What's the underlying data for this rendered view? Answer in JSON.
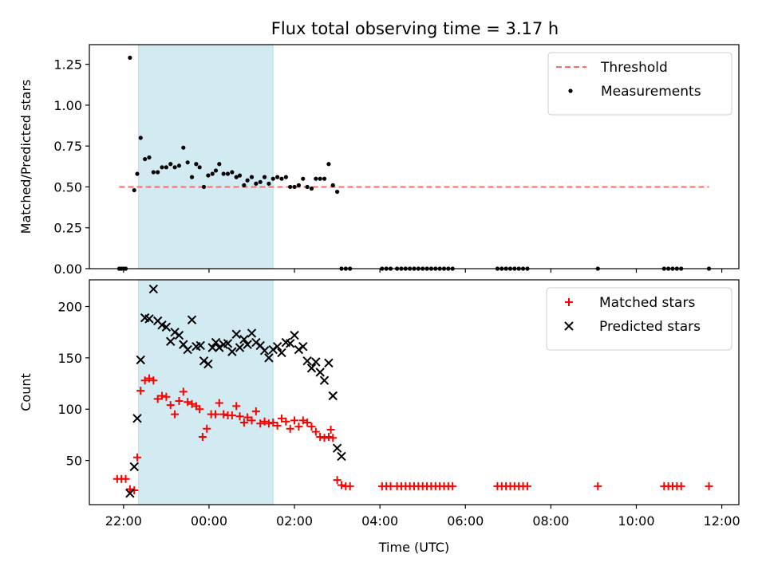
{
  "title": "Flux total observing time = 3.17 h",
  "colors": {
    "threshold": "#ff6b6b",
    "measurement": "#000000",
    "matched": "#ff0000",
    "predicted": "#000000",
    "highlight": "#add8e6"
  },
  "chart_data": [
    {
      "type": "scatter",
      "ylabel": "Matched/Predicted stars",
      "ylim": [
        0,
        1.37
      ],
      "yticks": [
        0,
        0.25,
        0.5,
        0.75,
        1.0,
        1.25
      ],
      "ytick_labels": [
        "0.00",
        "0.25",
        "0.50",
        "0.75",
        "1.00",
        "1.25"
      ],
      "xlim_hours": [
        -2.8,
        12.4
      ],
      "highlight_span_hours": [
        -1.65,
        1.5
      ],
      "legend": {
        "placement": "top-right",
        "entries": [
          {
            "label": "Threshold",
            "kind": "dashed-line",
            "color": "#ff6b6b"
          },
          {
            "label": "Measurements",
            "kind": "dot",
            "color": "#000000"
          }
        ]
      },
      "threshold": {
        "name": "Threshold",
        "value": 0.5,
        "x_range_hours": [
          -2.1,
          11.7
        ]
      },
      "series": [
        {
          "name": "Measurements",
          "points": [
            [
              -2.1,
              0
            ],
            [
              -2.05,
              0
            ],
            [
              -2.0,
              0
            ],
            [
              -1.95,
              0
            ],
            [
              -1.85,
              1.29
            ],
            [
              -1.75,
              0.48
            ],
            [
              -1.68,
              0.58
            ],
            [
              -1.6,
              0.8
            ],
            [
              -1.5,
              0.67
            ],
            [
              -1.4,
              0.68
            ],
            [
              -1.3,
              0.59
            ],
            [
              -1.2,
              0.59
            ],
            [
              -1.1,
              0.62
            ],
            [
              -1.0,
              0.62
            ],
            [
              -0.9,
              0.64
            ],
            [
              -0.8,
              0.62
            ],
            [
              -0.7,
              0.63
            ],
            [
              -0.6,
              0.74
            ],
            [
              -0.5,
              0.65
            ],
            [
              -0.4,
              0.56
            ],
            [
              -0.3,
              0.64
            ],
            [
              -0.22,
              0.62
            ],
            [
              -0.12,
              0.5
            ],
            [
              -0.02,
              0.57
            ],
            [
              0.08,
              0.58
            ],
            [
              0.16,
              0.6
            ],
            [
              0.24,
              0.64
            ],
            [
              0.34,
              0.58
            ],
            [
              0.44,
              0.58
            ],
            [
              0.54,
              0.59
            ],
            [
              0.64,
              0.56
            ],
            [
              0.72,
              0.57
            ],
            [
              0.82,
              0.51
            ],
            [
              0.9,
              0.54
            ],
            [
              1.0,
              0.56
            ],
            [
              1.1,
              0.52
            ],
            [
              1.2,
              0.53
            ],
            [
              1.3,
              0.56
            ],
            [
              1.4,
              0.52
            ],
            [
              1.5,
              0.55
            ],
            [
              1.6,
              0.56
            ],
            [
              1.7,
              0.55
            ],
            [
              1.8,
              0.56
            ],
            [
              1.9,
              0.5
            ],
            [
              2.0,
              0.5
            ],
            [
              2.1,
              0.51
            ],
            [
              2.2,
              0.55
            ],
            [
              2.3,
              0.5
            ],
            [
              2.4,
              0.49
            ],
            [
              2.5,
              0.55
            ],
            [
              2.6,
              0.55
            ],
            [
              2.7,
              0.55
            ],
            [
              2.8,
              0.64
            ],
            [
              2.9,
              0.51
            ],
            [
              3.0,
              0.47
            ],
            [
              3.1,
              0
            ],
            [
              3.2,
              0
            ],
            [
              3.3,
              0
            ],
            [
              4.05,
              0
            ],
            [
              4.15,
              0
            ],
            [
              4.25,
              0
            ],
            [
              4.4,
              0
            ],
            [
              4.5,
              0
            ],
            [
              4.6,
              0
            ],
            [
              4.7,
              0
            ],
            [
              4.8,
              0
            ],
            [
              4.9,
              0
            ],
            [
              5.0,
              0
            ],
            [
              5.1,
              0
            ],
            [
              5.2,
              0
            ],
            [
              5.3,
              0
            ],
            [
              5.4,
              0
            ],
            [
              5.5,
              0
            ],
            [
              5.6,
              0
            ],
            [
              5.7,
              0
            ],
            [
              6.75,
              0
            ],
            [
              6.85,
              0
            ],
            [
              6.95,
              0
            ],
            [
              7.05,
              0
            ],
            [
              7.15,
              0
            ],
            [
              7.25,
              0
            ],
            [
              7.35,
              0
            ],
            [
              7.45,
              0
            ],
            [
              9.1,
              0
            ],
            [
              10.65,
              0
            ],
            [
              10.75,
              0
            ],
            [
              10.85,
              0
            ],
            [
              10.95,
              0
            ],
            [
              11.05,
              0
            ],
            [
              11.7,
              0
            ]
          ]
        }
      ]
    },
    {
      "type": "scatter",
      "ylabel": "Count",
      "xlabel": "Time (UTC)",
      "ylim": [
        7,
        226
      ],
      "yticks": [
        50,
        100,
        150,
        200
      ],
      "ytick_labels": [
        "50",
        "100",
        "150",
        "200"
      ],
      "xlim_hours": [
        -2.8,
        12.4
      ],
      "xticks_hours": [
        -2,
        0,
        2,
        4,
        6,
        8,
        10,
        12
      ],
      "xtick_labels": [
        "22:00",
        "00:00",
        "02:00",
        "04:00",
        "06:00",
        "08:00",
        "10:00",
        "12:00"
      ],
      "highlight_span_hours": [
        -1.65,
        1.5
      ],
      "legend": {
        "placement": "top-right",
        "entries": [
          {
            "label": "Matched stars",
            "kind": "plus",
            "color": "#ff0000"
          },
          {
            "label": "Predicted stars",
            "kind": "x",
            "color": "#000000"
          }
        ]
      },
      "series": [
        {
          "name": "Matched stars",
          "marker": "plus",
          "points": [
            [
              -2.15,
              32
            ],
            [
              -2.05,
              32
            ],
            [
              -1.95,
              32
            ],
            [
              -1.85,
              22
            ],
            [
              -1.75,
              21
            ],
            [
              -1.68,
              53
            ],
            [
              -1.6,
              118
            ],
            [
              -1.5,
              128
            ],
            [
              -1.4,
              130
            ],
            [
              -1.3,
              128
            ],
            [
              -1.2,
              110
            ],
            [
              -1.1,
              113
            ],
            [
              -1.0,
              112
            ],
            [
              -0.9,
              104
            ],
            [
              -0.8,
              95
            ],
            [
              -0.7,
              108
            ],
            [
              -0.6,
              117
            ],
            [
              -0.5,
              107
            ],
            [
              -0.4,
              105
            ],
            [
              -0.3,
              103
            ],
            [
              -0.22,
              100
            ],
            [
              -0.15,
              73
            ],
            [
              -0.05,
              81
            ],
            [
              0.05,
              95
            ],
            [
              0.15,
              95
            ],
            [
              0.24,
              106
            ],
            [
              0.34,
              95
            ],
            [
              0.44,
              94
            ],
            [
              0.54,
              94
            ],
            [
              0.64,
              103
            ],
            [
              0.72,
              93
            ],
            [
              0.82,
              87
            ],
            [
              0.9,
              92
            ],
            [
              1.0,
              89
            ],
            [
              1.1,
              98
            ],
            [
              1.2,
              86
            ],
            [
              1.3,
              88
            ],
            [
              1.4,
              86
            ],
            [
              1.5,
              87
            ],
            [
              1.6,
              84
            ],
            [
              1.7,
              91
            ],
            [
              1.8,
              88
            ],
            [
              1.9,
              81
            ],
            [
              2.0,
              89
            ],
            [
              2.1,
              83
            ],
            [
              2.2,
              89
            ],
            [
              2.3,
              87
            ],
            [
              2.4,
              83
            ],
            [
              2.5,
              78
            ],
            [
              2.6,
              73
            ],
            [
              2.7,
              72
            ],
            [
              2.8,
              73
            ],
            [
              2.85,
              80
            ],
            [
              2.9,
              72
            ],
            [
              3.0,
              31
            ],
            [
              3.1,
              26
            ],
            [
              3.2,
              25
            ],
            [
              3.3,
              25
            ],
            [
              4.05,
              25
            ],
            [
              4.15,
              25
            ],
            [
              4.25,
              25
            ],
            [
              4.4,
              25
            ],
            [
              4.5,
              25
            ],
            [
              4.6,
              25
            ],
            [
              4.7,
              25
            ],
            [
              4.8,
              25
            ],
            [
              4.9,
              25
            ],
            [
              5.0,
              25
            ],
            [
              5.1,
              25
            ],
            [
              5.2,
              25
            ],
            [
              5.3,
              25
            ],
            [
              5.4,
              25
            ],
            [
              5.5,
              25
            ],
            [
              5.6,
              25
            ],
            [
              5.7,
              25
            ],
            [
              6.75,
              25
            ],
            [
              6.85,
              25
            ],
            [
              6.95,
              25
            ],
            [
              7.05,
              25
            ],
            [
              7.15,
              25
            ],
            [
              7.25,
              25
            ],
            [
              7.35,
              25
            ],
            [
              7.45,
              25
            ],
            [
              9.1,
              25
            ],
            [
              10.65,
              25
            ],
            [
              10.75,
              25
            ],
            [
              10.85,
              25
            ],
            [
              10.95,
              25
            ],
            [
              11.05,
              25
            ],
            [
              11.7,
              25
            ]
          ]
        },
        {
          "name": "Predicted stars",
          "marker": "x",
          "points": [
            [
              -1.85,
              18
            ],
            [
              -1.75,
              44
            ],
            [
              -1.68,
              91
            ],
            [
              -1.6,
              148
            ],
            [
              -1.5,
              189
            ],
            [
              -1.4,
              188
            ],
            [
              -1.3,
              217
            ],
            [
              -1.2,
              186
            ],
            [
              -1.1,
              182
            ],
            [
              -1.0,
              180
            ],
            [
              -0.9,
              166
            ],
            [
              -0.8,
              175
            ],
            [
              -0.7,
              172
            ],
            [
              -0.6,
              163
            ],
            [
              -0.5,
              158
            ],
            [
              -0.4,
              187
            ],
            [
              -0.3,
              161
            ],
            [
              -0.2,
              162
            ],
            [
              -0.12,
              147
            ],
            [
              -0.02,
              144
            ],
            [
              0.08,
              160
            ],
            [
              0.16,
              165
            ],
            [
              0.24,
              160
            ],
            [
              0.34,
              163
            ],
            [
              0.44,
              164
            ],
            [
              0.54,
              156
            ],
            [
              0.64,
              173
            ],
            [
              0.72,
              160
            ],
            [
              0.82,
              168
            ],
            [
              0.9,
              163
            ],
            [
              1.0,
              174
            ],
            [
              1.1,
              165
            ],
            [
              1.2,
              162
            ],
            [
              1.3,
              157
            ],
            [
              1.4,
              150
            ],
            [
              1.5,
              158
            ],
            [
              1.6,
              161
            ],
            [
              1.7,
              155
            ],
            [
              1.8,
              165
            ],
            [
              1.9,
              164
            ],
            [
              2.0,
              172
            ],
            [
              2.1,
              158
            ],
            [
              2.2,
              161
            ],
            [
              2.3,
              147
            ],
            [
              2.4,
              140
            ],
            [
              2.5,
              146
            ],
            [
              2.6,
              136
            ],
            [
              2.7,
              128
            ],
            [
              2.8,
              145
            ],
            [
              2.9,
              113
            ],
            [
              3.0,
              62
            ],
            [
              3.1,
              54
            ]
          ]
        }
      ]
    }
  ]
}
